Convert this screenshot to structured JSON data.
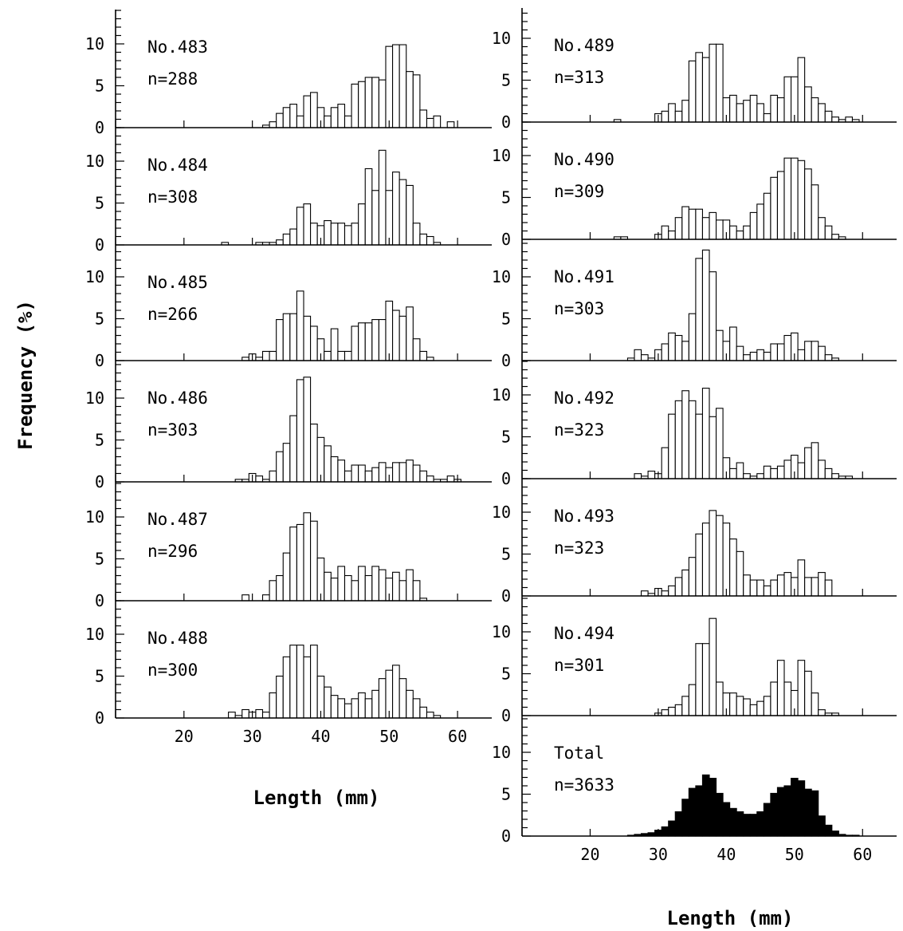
{
  "figure": {
    "ylabel": "Frequency  (%)",
    "xlabel_left": "Length (mm)",
    "xlabel_right": "Length (mm)"
  },
  "chart_data": [
    {
      "type": "bar",
      "panel": "No.483",
      "label": "No.483",
      "n_label": "n=288",
      "x_bins_mm": [
        29,
        30,
        31,
        32,
        33,
        34,
        35,
        36,
        37,
        38,
        39,
        40,
        41,
        42,
        43,
        44,
        45,
        46,
        47,
        48,
        49,
        50,
        51,
        52,
        53,
        54,
        55,
        56,
        57,
        58,
        59,
        60
      ],
      "values": [
        0,
        0,
        0,
        0.3,
        0.7,
        1.7,
        2.4,
        2.8,
        1.4,
        3.8,
        4.2,
        2.4,
        1.4,
        2.4,
        2.8,
        1.4,
        5.2,
        5.5,
        6.0,
        6.0,
        5.7,
        9.7,
        9.9,
        9.9,
        6.7,
        6.3,
        2.1,
        1.1,
        1.4,
        0,
        0.7,
        0
      ],
      "ylim": [
        0,
        13
      ],
      "xlim": [
        10,
        65
      ],
      "x_ticks": [
        "20",
        "30",
        "40",
        "50",
        "60"
      ],
      "y_ticks": [
        "0",
        "5",
        "10"
      ]
    },
    {
      "type": "bar",
      "panel": "No.484",
      "label": "No.484",
      "n_label": "n=308",
      "x_bins_mm": [
        26,
        27,
        28,
        29,
        30,
        31,
        32,
        33,
        34,
        35,
        36,
        37,
        38,
        39,
        40,
        41,
        42,
        43,
        44,
        45,
        46,
        47,
        48,
        49,
        50,
        51,
        52,
        53,
        54,
        55,
        56,
        57,
        58,
        59,
        60
      ],
      "values": [
        0.3,
        0,
        0,
        0,
        0,
        0.3,
        0.3,
        0.3,
        0.6,
        1.3,
        1.9,
        4.5,
        4.9,
        2.6,
        2.3,
        2.9,
        2.6,
        2.6,
        2.3,
        2.6,
        4.9,
        9.1,
        6.5,
        11.3,
        6.5,
        8.7,
        7.8,
        7.1,
        2.6,
        1.3,
        1.0,
        0.3,
        0,
        0,
        0
      ],
      "ylim": [
        0,
        13
      ],
      "xlim": [
        10,
        65
      ],
      "x_ticks": [
        "20",
        "30",
        "40",
        "50",
        "60"
      ],
      "y_ticks": [
        "0",
        "5",
        "10"
      ]
    },
    {
      "type": "bar",
      "panel": "No.485",
      "label": "No.485",
      "n_label": "n=266",
      "x_bins_mm": [
        29,
        30,
        31,
        32,
        33,
        34,
        35,
        36,
        37,
        38,
        39,
        40,
        41,
        42,
        43,
        44,
        45,
        46,
        47,
        48,
        49,
        50,
        51,
        52,
        53,
        54,
        55,
        56,
        57,
        58,
        59,
        60
      ],
      "values": [
        0.4,
        0.8,
        0.4,
        1.1,
        1.1,
        4.9,
        5.6,
        5.6,
        8.3,
        5.3,
        4.1,
        2.6,
        1.1,
        3.8,
        1.1,
        1.1,
        4.1,
        4.5,
        4.5,
        4.9,
        4.9,
        7.1,
        6.0,
        5.3,
        6.4,
        2.6,
        1.1,
        0.4,
        0,
        0,
        0,
        0
      ],
      "ylim": [
        0,
        13
      ],
      "xlim": [
        10,
        65
      ],
      "x_ticks": [
        "20",
        "30",
        "40",
        "50",
        "60"
      ],
      "y_ticks": [
        "0",
        "5",
        "10"
      ]
    },
    {
      "type": "bar",
      "panel": "No.486",
      "label": "No.486",
      "n_label": "n=303",
      "x_bins_mm": [
        28,
        29,
        30,
        31,
        32,
        33,
        34,
        35,
        36,
        37,
        38,
        39,
        40,
        41,
        42,
        43,
        44,
        45,
        46,
        47,
        48,
        49,
        50,
        51,
        52,
        53,
        54,
        55,
        56,
        57,
        58,
        59,
        60
      ],
      "values": [
        0.3,
        0.3,
        1.0,
        0.7,
        0.3,
        1.3,
        3.6,
        4.6,
        7.9,
        12.2,
        12.5,
        6.9,
        5.3,
        4.3,
        3.0,
        2.6,
        1.3,
        2.0,
        2.0,
        1.3,
        1.7,
        2.3,
        1.7,
        2.3,
        2.3,
        2.6,
        2.0,
        1.3,
        0.7,
        0.3,
        0.3,
        0.7,
        0.3
      ],
      "ylim": [
        0,
        13
      ],
      "xlim": [
        10,
        65
      ],
      "x_ticks": [
        "20",
        "30",
        "40",
        "50",
        "60"
      ],
      "y_ticks": [
        "0",
        "5",
        "10"
      ]
    },
    {
      "type": "bar",
      "panel": "No.487",
      "label": "No.487",
      "n_label": "n=296",
      "x_bins_mm": [
        29,
        30,
        31,
        32,
        33,
        34,
        35,
        36,
        37,
        38,
        39,
        40,
        41,
        42,
        43,
        44,
        45,
        46,
        47,
        48,
        49,
        50,
        51,
        52,
        53,
        54,
        55,
        56,
        57,
        58,
        59,
        60
      ],
      "values": [
        0.7,
        0,
        0,
        0.7,
        2.4,
        3.0,
        5.7,
        8.8,
        9.1,
        10.5,
        9.5,
        5.1,
        3.4,
        2.7,
        4.1,
        3.0,
        2.4,
        4.1,
        3.0,
        4.1,
        3.7,
        2.7,
        3.4,
        2.4,
        3.7,
        2.4,
        0.3,
        0,
        0,
        0,
        0,
        0
      ],
      "ylim": [
        0,
        13
      ],
      "xlim": [
        10,
        65
      ],
      "x_ticks": [
        "20",
        "30",
        "40",
        "50",
        "60"
      ],
      "y_ticks": [
        "0",
        "5",
        "10"
      ]
    },
    {
      "type": "bar",
      "panel": "No.488",
      "label": "No.488",
      "n_label": "n=300",
      "x_bins_mm": [
        27,
        28,
        29,
        30,
        31,
        32,
        33,
        34,
        35,
        36,
        37,
        38,
        39,
        40,
        41,
        42,
        43,
        44,
        45,
        46,
        47,
        48,
        49,
        50,
        51,
        52,
        53,
        54,
        55,
        56,
        57,
        58,
        59,
        60
      ],
      "values": [
        0.7,
        0.3,
        1.0,
        0.7,
        1.0,
        0.7,
        3.0,
        5.0,
        7.3,
        8.7,
        8.7,
        7.3,
        8.7,
        5.0,
        3.7,
        2.7,
        2.3,
        1.7,
        2.3,
        3.0,
        2.3,
        3.3,
        4.7,
        5.7,
        6.3,
        4.7,
        3.3,
        2.3,
        1.3,
        0.7,
        0.3,
        0,
        0,
        0
      ],
      "ylim": [
        0,
        13
      ],
      "xlim": [
        10,
        65
      ],
      "x_ticks": [
        "20",
        "30",
        "40",
        "50",
        "60"
      ],
      "y_ticks": [
        "0",
        "5",
        "10"
      ]
    },
    {
      "type": "bar",
      "panel": "No.489",
      "label": "No.489",
      "n_label": "n=313",
      "x_bins_mm": [
        24,
        25,
        26,
        27,
        28,
        29,
        30,
        31,
        32,
        33,
        34,
        35,
        36,
        37,
        38,
        39,
        40,
        41,
        42,
        43,
        44,
        45,
        46,
        47,
        48,
        49,
        50,
        51,
        52,
        53,
        54,
        55,
        56,
        57,
        58,
        59,
        60
      ],
      "values": [
        0.3,
        0,
        0,
        0,
        0,
        0,
        1.0,
        1.3,
        2.2,
        1.3,
        2.6,
        7.3,
        8.3,
        7.7,
        9.3,
        9.3,
        2.9,
        3.2,
        2.2,
        2.6,
        3.2,
        2.2,
        1.0,
        3.2,
        2.9,
        5.4,
        5.4,
        7.7,
        4.2,
        2.9,
        2.2,
        1.3,
        0.6,
        0.3,
        0.6,
        0.3,
        0
      ],
      "ylim": [
        0,
        13
      ],
      "xlim": [
        10,
        65
      ],
      "x_ticks": [
        "20",
        "30",
        "40",
        "50",
        "60"
      ],
      "y_ticks": [
        "0",
        "5",
        "10"
      ]
    },
    {
      "type": "bar",
      "panel": "No.490",
      "label": "No.490",
      "n_label": "n=309",
      "x_bins_mm": [
        24,
        25,
        26,
        27,
        28,
        29,
        30,
        31,
        32,
        33,
        34,
        35,
        36,
        37,
        38,
        39,
        40,
        41,
        42,
        43,
        44,
        45,
        46,
        47,
        48,
        49,
        50,
        51,
        52,
        53,
        54,
        55,
        56,
        57,
        58,
        59,
        60
      ],
      "values": [
        0.3,
        0.3,
        0,
        0,
        0,
        0,
        0.6,
        1.6,
        1.0,
        2.6,
        3.9,
        3.6,
        3.6,
        2.6,
        3.2,
        2.3,
        2.3,
        1.6,
        1.0,
        1.6,
        3.2,
        4.2,
        5.5,
        7.4,
        8.1,
        9.7,
        9.7,
        9.4,
        8.4,
        6.5,
        2.6,
        1.6,
        0.6,
        0.3,
        0,
        0,
        0
      ],
      "ylim": [
        0,
        13
      ],
      "xlim": [
        10,
        65
      ],
      "x_ticks": [
        "20",
        "30",
        "40",
        "50",
        "60"
      ],
      "y_ticks": [
        "0",
        "5",
        "10"
      ]
    },
    {
      "type": "bar",
      "panel": "No.491",
      "label": "No.491",
      "n_label": "n=303",
      "x_bins_mm": [
        26,
        27,
        28,
        29,
        30,
        31,
        32,
        33,
        34,
        35,
        36,
        37,
        38,
        39,
        40,
        41,
        42,
        43,
        44,
        45,
        46,
        47,
        48,
        49,
        50,
        51,
        52,
        53,
        54,
        55,
        56,
        57,
        58,
        59,
        60
      ],
      "values": [
        0.3,
        1.3,
        0.7,
        0.3,
        1.3,
        2.0,
        3.3,
        3.0,
        2.3,
        5.6,
        12.2,
        13.2,
        10.6,
        3.6,
        2.3,
        4.0,
        1.7,
        0.7,
        1.0,
        1.3,
        1.0,
        2.0,
        2.0,
        3.0,
        3.3,
        1.3,
        2.3,
        2.3,
        1.7,
        0.7,
        0.3,
        0,
        0,
        0,
        0
      ],
      "ylim": [
        0,
        13
      ],
      "xlim": [
        10,
        65
      ],
      "x_ticks": [
        "20",
        "30",
        "40",
        "50",
        "60"
      ],
      "y_ticks": [
        "0",
        "5",
        "10"
      ]
    },
    {
      "type": "bar",
      "panel": "No.492",
      "label": "No.492",
      "n_label": "n=323",
      "x_bins_mm": [
        27,
        28,
        29,
        30,
        31,
        32,
        33,
        34,
        35,
        36,
        37,
        38,
        39,
        40,
        41,
        42,
        43,
        44,
        45,
        46,
        47,
        48,
        49,
        50,
        51,
        52,
        53,
        54,
        55,
        56,
        57,
        58,
        59,
        60
      ],
      "values": [
        0.6,
        0.3,
        0.9,
        0.6,
        3.7,
        7.7,
        9.3,
        10.5,
        9.3,
        7.7,
        10.8,
        7.4,
        8.4,
        2.5,
        1.2,
        1.9,
        0.6,
        0.3,
        0.6,
        1.5,
        1.2,
        1.5,
        2.2,
        2.8,
        1.9,
        3.7,
        4.3,
        2.2,
        1.2,
        0.6,
        0.3,
        0.3,
        0,
        0
      ],
      "ylim": [
        0,
        13
      ],
      "xlim": [
        10,
        65
      ],
      "x_ticks": [
        "20",
        "30",
        "40",
        "50",
        "60"
      ],
      "y_ticks": [
        "0",
        "5",
        "10"
      ]
    },
    {
      "type": "bar",
      "panel": "No.493",
      "label": "No.493",
      "n_label": "n=323",
      "x_bins_mm": [
        28,
        29,
        30,
        31,
        32,
        33,
        34,
        35,
        36,
        37,
        38,
        39,
        40,
        41,
        42,
        43,
        44,
        45,
        46,
        47,
        48,
        49,
        50,
        51,
        52,
        53,
        54,
        55,
        56,
        57,
        58,
        59,
        60
      ],
      "values": [
        0.6,
        0.3,
        0.9,
        0.6,
        1.2,
        2.2,
        3.1,
        4.6,
        7.4,
        8.7,
        10.2,
        9.6,
        8.7,
        6.8,
        5.3,
        2.5,
        1.9,
        1.9,
        1.2,
        1.9,
        2.5,
        2.8,
        2.2,
        4.3,
        2.2,
        2.2,
        2.8,
        1.9,
        0,
        0,
        0,
        0,
        0
      ],
      "ylim": [
        0,
        13
      ],
      "xlim": [
        10,
        65
      ],
      "x_ticks": [
        "20",
        "30",
        "40",
        "50",
        "60"
      ],
      "y_ticks": [
        "0",
        "5",
        "10"
      ]
    },
    {
      "type": "bar",
      "panel": "No.494",
      "label": "No.494",
      "n_label": "n=301",
      "x_bins_mm": [
        30,
        31,
        32,
        33,
        34,
        35,
        36,
        37,
        38,
        39,
        40,
        41,
        42,
        43,
        44,
        45,
        46,
        47,
        48,
        49,
        50,
        51,
        52,
        53,
        54,
        55,
        56,
        57,
        58,
        59,
        60
      ],
      "values": [
        0.3,
        0.7,
        1.0,
        1.3,
        2.3,
        3.7,
        8.6,
        8.6,
        11.6,
        4.0,
        2.7,
        2.7,
        2.3,
        2.0,
        1.3,
        1.7,
        2.3,
        4.0,
        6.6,
        4.0,
        3.0,
        6.6,
        5.3,
        2.7,
        0.7,
        0.3,
        0.3,
        0,
        0,
        0,
        0
      ],
      "ylim": [
        0,
        13
      ],
      "xlim": [
        10,
        65
      ],
      "x_ticks": [
        "20",
        "30",
        "40",
        "50",
        "60"
      ],
      "y_ticks": [
        "0",
        "5",
        "10"
      ]
    },
    {
      "type": "bar",
      "panel": "Total",
      "label": "Total",
      "n_label": "n=3633",
      "filled": true,
      "x_bins_mm": [
        26,
        27,
        28,
        29,
        30,
        31,
        32,
        33,
        34,
        35,
        36,
        37,
        38,
        39,
        40,
        41,
        42,
        43,
        44,
        45,
        46,
        47,
        48,
        49,
        50,
        51,
        52,
        53,
        54,
        55,
        56,
        57,
        58,
        59,
        60
      ],
      "values": [
        0.1,
        0.2,
        0.3,
        0.4,
        0.7,
        1.1,
        1.8,
        2.9,
        4.4,
        5.7,
        6.0,
        7.3,
        6.9,
        5.1,
        4.0,
        3.3,
        2.9,
        2.6,
        2.6,
        2.9,
        3.9,
        5.1,
        5.8,
        6.0,
        6.9,
        6.6,
        5.6,
        5.4,
        2.4,
        1.3,
        0.6,
        0.2,
        0.1,
        0.1,
        0
      ],
      "ylim": [
        0,
        13
      ],
      "xlim": [
        10,
        65
      ],
      "x_ticks": [
        "20",
        "30",
        "40",
        "50",
        "60"
      ],
      "y_ticks": [
        "0",
        "5",
        "10"
      ]
    }
  ]
}
